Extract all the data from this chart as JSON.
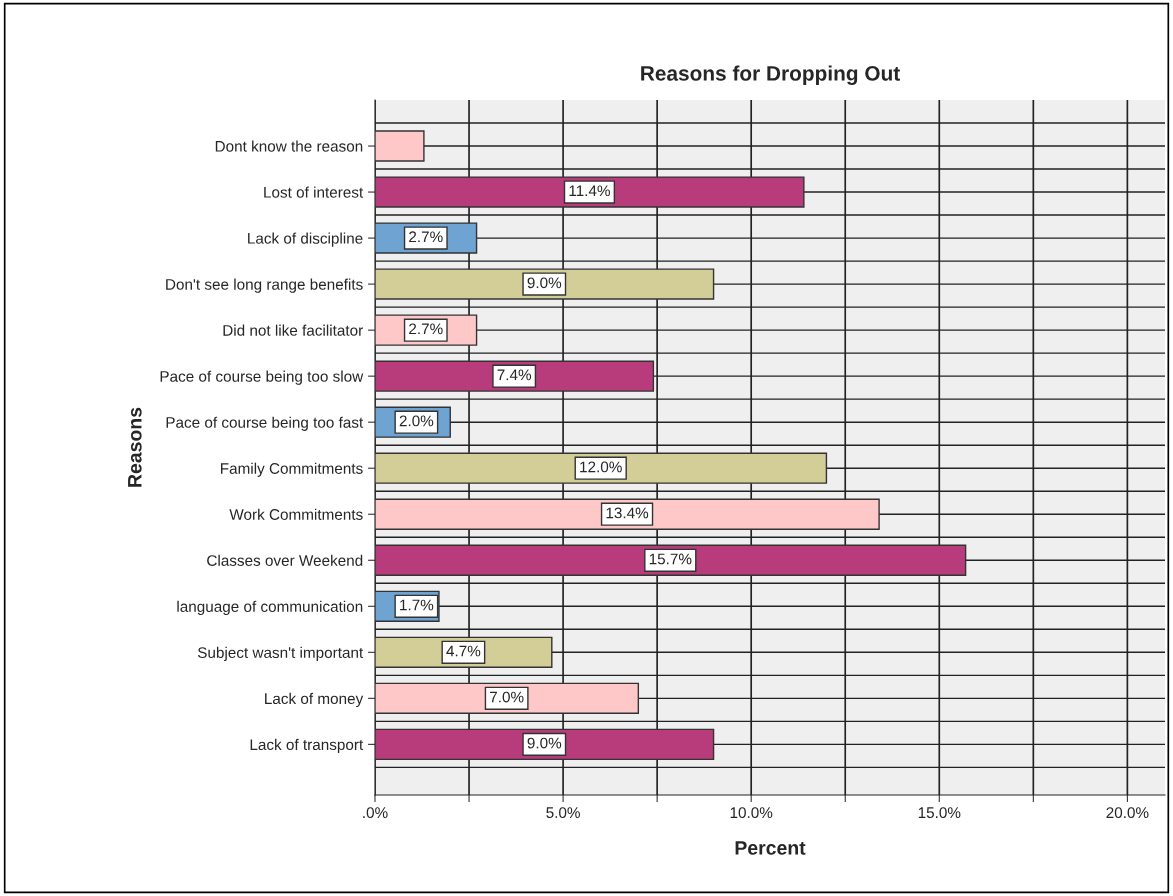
{
  "chart_data": {
    "type": "bar",
    "orientation": "horizontal",
    "title": "Reasons for Dropping Out",
    "xlabel": "Percent",
    "ylabel": "Reasons",
    "categories": [
      "Dont know the reason",
      "Lost of interest",
      "Lack of discipline",
      "Don't see long range benefits",
      "Did not like facilitator",
      "Pace of course being too slow",
      "Pace of course being too fast",
      "Family Commitments",
      "Work Commitments",
      "Classes over Weekend",
      "language of communication",
      "Subject wasn't important",
      "Lack of money",
      "Lack of transport"
    ],
    "values": [
      1.3,
      11.4,
      2.7,
      9.0,
      2.7,
      7.4,
      2.0,
      12.0,
      13.4,
      15.7,
      1.7,
      4.7,
      7.0,
      9.0
    ],
    "value_labels": [
      null,
      "11.4%",
      "2.7%",
      "9.0%",
      "2.7%",
      "7.4%",
      "2.0%",
      "12.0%",
      "13.4%",
      "15.7%",
      "1.7%",
      "4.7%",
      "7.0%",
      "9.0%"
    ],
    "colors": [
      "#ffc8c8",
      "#b83c7b",
      "#6fa3d2",
      "#d3cd98",
      "#ffc8c8",
      "#b83c7b",
      "#6fa3d2",
      "#d3cd98",
      "#ffc8c8",
      "#b83c7b",
      "#6fa3d2",
      "#d3cd98",
      "#ffc8c8",
      "#b83c7b"
    ],
    "xlim": [
      0,
      21
    ],
    "xticks": [
      {
        "value": 0,
        "label": ".0%"
      },
      {
        "value": 2.5,
        "label": null
      },
      {
        "value": 5,
        "label": "5.0%"
      },
      {
        "value": 7.5,
        "label": null
      },
      {
        "value": 10,
        "label": "10.0%"
      },
      {
        "value": 12.5,
        "label": null
      },
      {
        "value": 15,
        "label": "15.0%"
      },
      {
        "value": 17.5,
        "label": null
      },
      {
        "value": 20,
        "label": "20.0%"
      }
    ],
    "grid": true
  }
}
